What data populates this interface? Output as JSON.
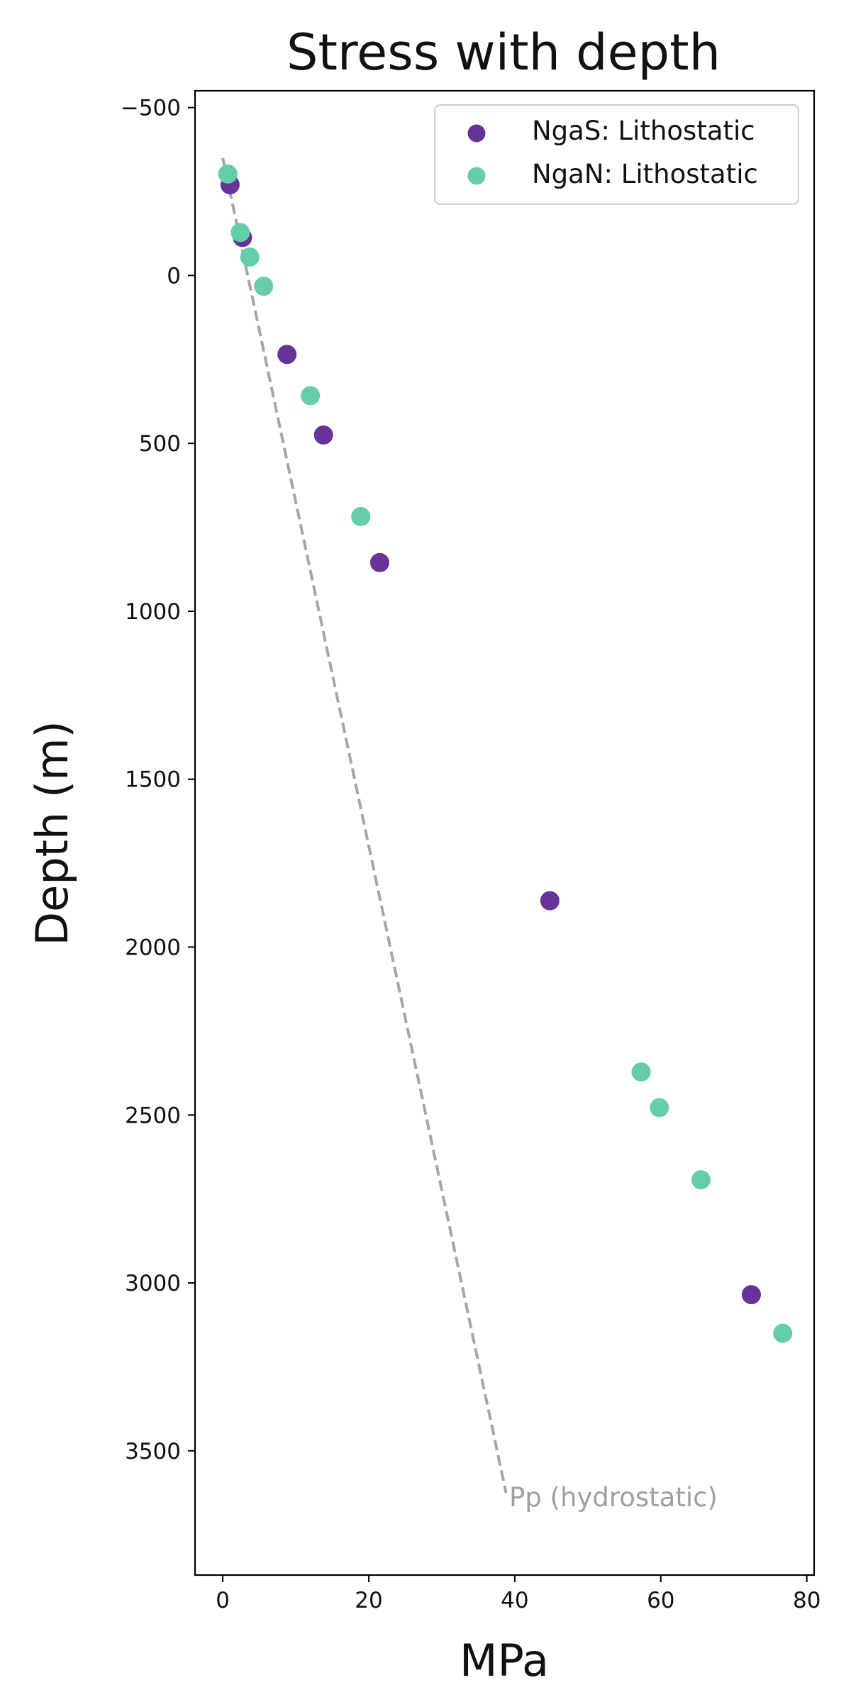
{
  "chart_data": {
    "type": "scatter",
    "title": "Stress with depth",
    "xlabel": "MPa",
    "ylabel": "Depth (m)",
    "xlim": [
      -3.8,
      81
    ],
    "ylim": [
      3870,
      -550
    ],
    "y_inverted": true,
    "xticks": [
      0,
      20,
      40,
      60,
      80
    ],
    "yticks": [
      -500,
      0,
      500,
      1000,
      1500,
      2000,
      2500,
      3000,
      3500
    ],
    "ytick_labels": [
      "−500",
      "0",
      "500",
      "1000",
      "1500",
      "2000",
      "2500",
      "3000",
      "3500"
    ],
    "legend_position": "top-right",
    "grid": false,
    "series": [
      {
        "name": "NgaS: Lithostatic",
        "color": "#663399",
        "points": [
          {
            "x": 1.0,
            "y": -270
          },
          {
            "x": 2.7,
            "y": -113
          },
          {
            "x": 8.8,
            "y": 235
          },
          {
            "x": 13.8,
            "y": 475
          },
          {
            "x": 21.5,
            "y": 855
          },
          {
            "x": 44.8,
            "y": 1862
          },
          {
            "x": 72.4,
            "y": 3035
          }
        ]
      },
      {
        "name": "NgaN: Lithostatic",
        "color": "#66cdaa",
        "points": [
          {
            "x": 0.7,
            "y": -302
          },
          {
            "x": 2.4,
            "y": -128
          },
          {
            "x": 3.7,
            "y": -55
          },
          {
            "x": 5.6,
            "y": 32
          },
          {
            "x": 12.0,
            "y": 358
          },
          {
            "x": 18.9,
            "y": 718
          },
          {
            "x": 57.3,
            "y": 2372
          },
          {
            "x": 59.8,
            "y": 2478
          },
          {
            "x": 65.5,
            "y": 2693
          },
          {
            "x": 76.7,
            "y": 3150
          }
        ]
      }
    ],
    "reference_line": {
      "label": "Pp (hydrostatic)",
      "color": "#a6a6a6",
      "style": "dashed",
      "points": [
        {
          "x": 0.0,
          "y": -350
        },
        {
          "x": 38.8,
          "y": 3625
        }
      ]
    }
  }
}
